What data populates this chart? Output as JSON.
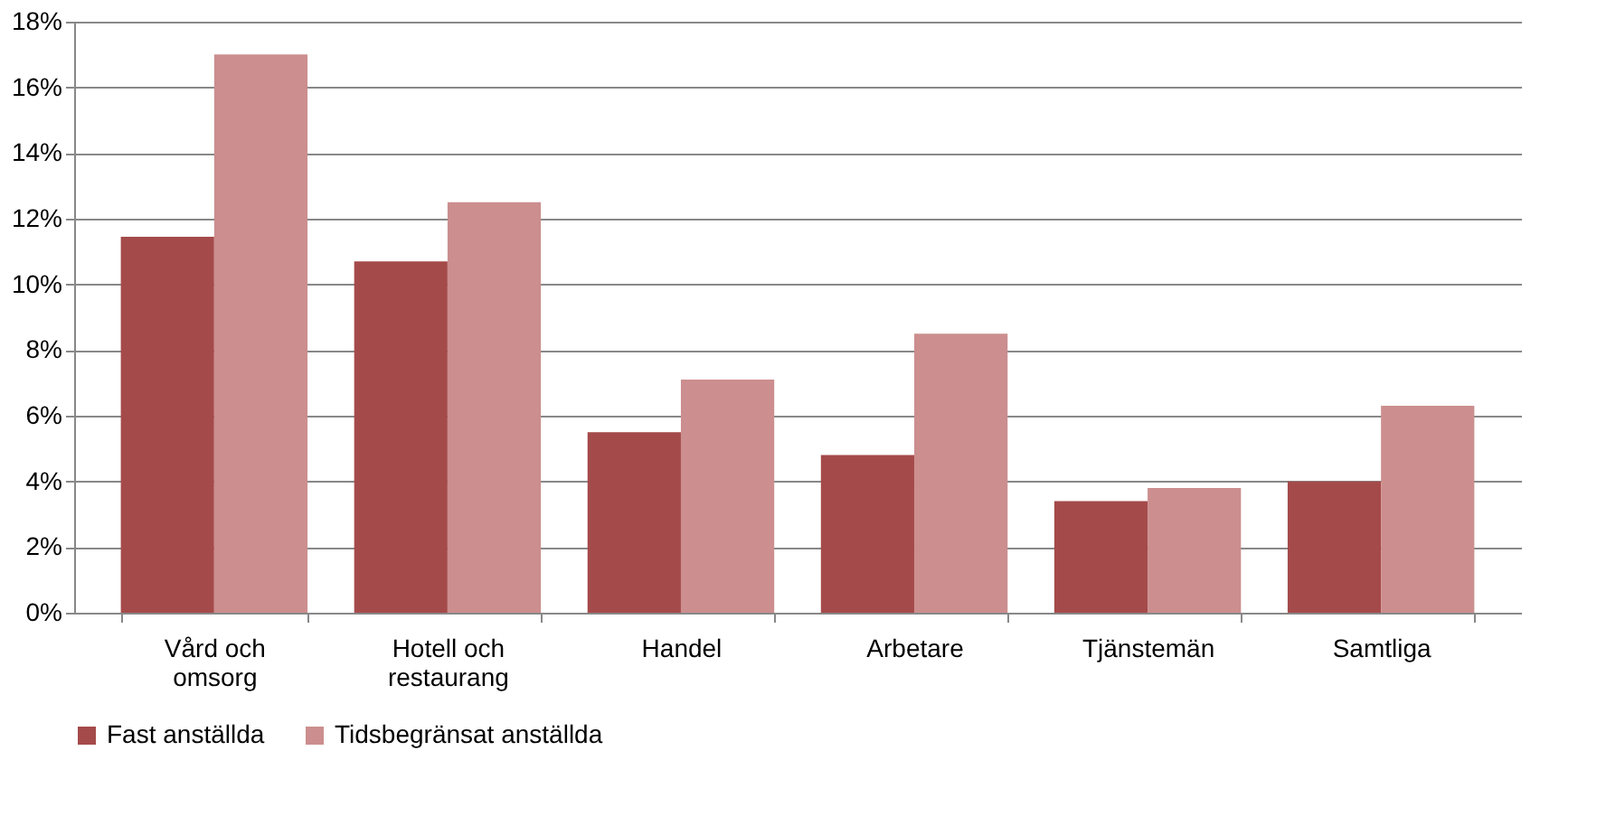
{
  "chart_data": {
    "type": "bar",
    "categories": [
      "Vård och\nomsorg",
      "Hotell och\nrestaurang",
      "Handel",
      "Arbetare",
      "Tjänstemän",
      "Samtliga"
    ],
    "series": [
      {
        "name": "Fast anställda",
        "color": "#a54a4a",
        "values": [
          11.45,
          10.7,
          5.5,
          4.8,
          3.4,
          4.0
        ]
      },
      {
        "name": "Tidsbegränsat anställda",
        "color": "#cc8e8e",
        "values": [
          17.0,
          12.5,
          7.1,
          8.5,
          3.8,
          6.3
        ]
      }
    ],
    "ylim": [
      0,
      18
    ],
    "yticks": [
      {
        "value": 0,
        "label": "0%"
      },
      {
        "value": 2,
        "label": "2%"
      },
      {
        "value": 4,
        "label": "4%"
      },
      {
        "value": 6,
        "label": "6%"
      },
      {
        "value": 8,
        "label": "8%"
      },
      {
        "value": 10,
        "label": "10%"
      },
      {
        "value": 12,
        "label": "12%"
      },
      {
        "value": 14,
        "label": "14%"
      },
      {
        "value": 16,
        "label": "16%"
      },
      {
        "value": 18,
        "label": "18%"
      }
    ],
    "grid": "y",
    "legend": "bottom"
  }
}
